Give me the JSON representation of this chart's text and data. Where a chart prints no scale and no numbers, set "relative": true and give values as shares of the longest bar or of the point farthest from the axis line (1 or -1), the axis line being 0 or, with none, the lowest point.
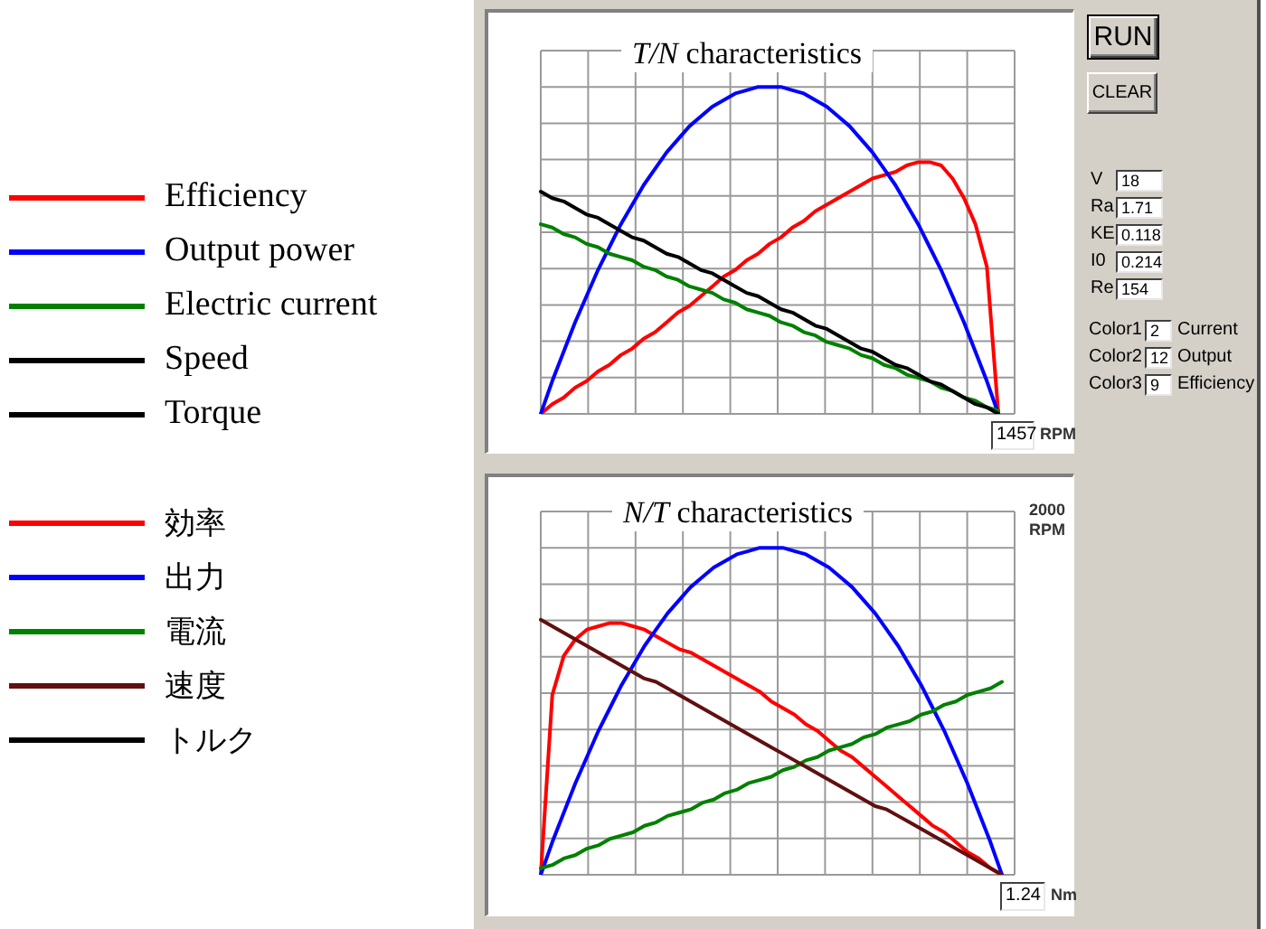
{
  "chart_data": [
    {
      "type": "line",
      "title": "T/N characteristics",
      "xlabel": "RPM",
      "annotations": [
        "1457"
      ],
      "relative": true,
      "grid": true,
      "legend": "left",
      "categories": [
        null,
        null,
        null,
        null,
        null,
        null,
        null,
        null,
        null,
        null,
        null,
        null,
        null,
        null,
        null,
        null,
        null,
        null,
        null,
        null,
        null,
        null,
        null,
        null,
        null,
        null,
        null,
        null,
        null,
        null,
        null,
        null,
        null,
        null,
        null,
        null,
        null,
        null,
        null,
        null,
        null
      ],
      "series": [
        {
          "name": "Efficiency",
          "color": "#ff0000",
          "values": [
            0,
            0.03,
            0.05,
            0.08,
            0.1,
            0.13,
            0.15,
            0.18,
            0.2,
            0.23,
            0.25,
            0.28,
            0.31,
            0.33,
            0.36,
            0.39,
            0.42,
            0.44,
            0.47,
            0.49,
            0.52,
            0.54,
            0.57,
            0.59,
            0.62,
            0.64,
            0.66,
            0.68,
            0.7,
            0.72,
            0.73,
            0.74,
            0.76,
            0.77,
            0.77,
            0.76,
            0.72,
            0.66,
            0.58,
            0.45,
            0
          ]
        },
        {
          "name": "Output power",
          "color": "#0000ff",
          "values": [
            0,
            0.1,
            0.19,
            0.28,
            0.36,
            0.44,
            0.51,
            0.58,
            0.64,
            0.7,
            0.75,
            0.8,
            0.84,
            0.88,
            0.91,
            0.94,
            0.96,
            0.98,
            0.99,
            1.0,
            1.0,
            1.0,
            0.99,
            0.98,
            0.96,
            0.94,
            0.91,
            0.88,
            0.84,
            0.8,
            0.75,
            0.7,
            0.64,
            0.58,
            0.51,
            0.44,
            0.36,
            0.28,
            0.19,
            0.1,
            0
          ]
        },
        {
          "name": "Electric current",
          "color": "#008000",
          "values": [
            0.58,
            0.57,
            0.55,
            0.54,
            0.52,
            0.51,
            0.49,
            0.48,
            0.47,
            0.45,
            0.44,
            0.42,
            0.41,
            0.39,
            0.38,
            0.37,
            0.35,
            0.34,
            0.32,
            0.31,
            0.3,
            0.28,
            0.27,
            0.25,
            0.24,
            0.22,
            0.21,
            0.2,
            0.18,
            0.17,
            0.15,
            0.14,
            0.12,
            0.11,
            0.1,
            0.08,
            0.07,
            0.05,
            0.04,
            0.02,
            0.01
          ]
        },
        {
          "name": "Speed",
          "color": "#000000",
          "values": [
            null,
            null,
            null,
            null,
            null,
            null,
            null,
            null,
            null,
            null,
            null,
            null,
            null,
            null,
            null,
            null,
            null,
            null,
            null,
            null,
            null,
            null,
            null,
            null,
            null,
            null,
            null,
            null,
            null,
            null,
            null,
            null,
            null,
            null,
            null,
            null,
            null,
            null,
            null,
            null,
            null
          ]
        },
        {
          "name": "Torque",
          "color": "#000000",
          "values": [
            0.68,
            0.66,
            0.65,
            0.63,
            0.61,
            0.6,
            0.58,
            0.56,
            0.54,
            0.53,
            0.51,
            0.49,
            0.48,
            0.46,
            0.44,
            0.43,
            0.41,
            0.39,
            0.37,
            0.36,
            0.34,
            0.32,
            0.31,
            0.29,
            0.27,
            0.26,
            0.24,
            0.22,
            0.2,
            0.19,
            0.17,
            0.15,
            0.14,
            0.12,
            0.1,
            0.09,
            0.07,
            0.05,
            0.03,
            0.02,
            0
          ]
        }
      ]
    },
    {
      "type": "line",
      "title": "N/T characteristics",
      "xlabel": "Nm",
      "ylabel": "RPM",
      "annotations": [
        "2000",
        "1.24"
      ],
      "relative": true,
      "grid": true,
      "legend": "left",
      "categories": [
        null,
        null,
        null,
        null,
        null,
        null,
        null,
        null,
        null,
        null,
        null,
        null,
        null,
        null,
        null,
        null,
        null,
        null,
        null,
        null,
        null,
        null,
        null,
        null,
        null,
        null,
        null,
        null,
        null,
        null,
        null,
        null,
        null,
        null,
        null,
        null,
        null,
        null,
        null,
        null,
        null
      ],
      "series": [
        {
          "name": "効率",
          "color": "#ff0000",
          "values": [
            0,
            0.55,
            0.67,
            0.72,
            0.75,
            0.76,
            0.77,
            0.77,
            0.76,
            0.75,
            0.73,
            0.71,
            0.69,
            0.68,
            0.66,
            0.64,
            0.62,
            0.6,
            0.58,
            0.56,
            0.53,
            0.51,
            0.49,
            0.46,
            0.44,
            0.41,
            0.38,
            0.36,
            0.33,
            0.3,
            0.27,
            0.24,
            0.21,
            0.18,
            0.15,
            0.13,
            0.1,
            0.07,
            0.05,
            0.02,
            0
          ]
        },
        {
          "name": "出力",
          "color": "#0000ff",
          "values": [
            0,
            0.1,
            0.19,
            0.28,
            0.36,
            0.44,
            0.51,
            0.58,
            0.64,
            0.7,
            0.75,
            0.8,
            0.84,
            0.88,
            0.91,
            0.94,
            0.96,
            0.98,
            0.99,
            1.0,
            1.0,
            1.0,
            0.99,
            0.98,
            0.96,
            0.94,
            0.91,
            0.88,
            0.84,
            0.8,
            0.75,
            0.7,
            0.64,
            0.58,
            0.51,
            0.44,
            0.36,
            0.28,
            0.19,
            0.1,
            0
          ]
        },
        {
          "name": "電流",
          "color": "#008000",
          "values": [
            0.02,
            0.03,
            0.05,
            0.06,
            0.08,
            0.09,
            0.11,
            0.12,
            0.13,
            0.15,
            0.16,
            0.18,
            0.19,
            0.2,
            0.22,
            0.23,
            0.25,
            0.26,
            0.28,
            0.29,
            0.3,
            0.32,
            0.33,
            0.35,
            0.36,
            0.38,
            0.39,
            0.4,
            0.42,
            0.43,
            0.45,
            0.46,
            0.47,
            0.49,
            0.5,
            0.52,
            0.53,
            0.55,
            0.56,
            0.57,
            0.59
          ]
        },
        {
          "name": "速度",
          "color": "#601010",
          "values": [
            0.78,
            0.76,
            0.74,
            0.72,
            0.7,
            0.68,
            0.66,
            0.64,
            0.62,
            0.6,
            0.59,
            0.57,
            0.55,
            0.53,
            0.51,
            0.49,
            0.47,
            0.45,
            0.43,
            0.41,
            0.39,
            0.37,
            0.35,
            0.33,
            0.31,
            0.29,
            0.27,
            0.25,
            0.23,
            0.21,
            0.2,
            0.18,
            0.16,
            0.14,
            0.12,
            0.1,
            0.08,
            0.06,
            0.04,
            0.02,
            0
          ]
        },
        {
          "name": "トルク",
          "color": "#000000",
          "values": [
            null,
            null,
            null,
            null,
            null,
            null,
            null,
            null,
            null,
            null,
            null,
            null,
            null,
            null,
            null,
            null,
            null,
            null,
            null,
            null,
            null,
            null,
            null,
            null,
            null,
            null,
            null,
            null,
            null,
            null,
            null,
            null,
            null,
            null,
            null,
            null,
            null,
            null,
            null,
            null,
            null
          ]
        }
      ]
    },
    {
      "type": "other",
      "annotations": [
        "RUN",
        "CLEAR",
        "V",
        "18",
        "Ra",
        "1.71",
        "KE",
        "0.118",
        "I0",
        "0.214",
        "Re",
        "154",
        "Color1",
        "2",
        "Current",
        "Color2",
        "12",
        "Output",
        "Color3",
        "9",
        "Efficiency"
      ]
    }
  ]
}
